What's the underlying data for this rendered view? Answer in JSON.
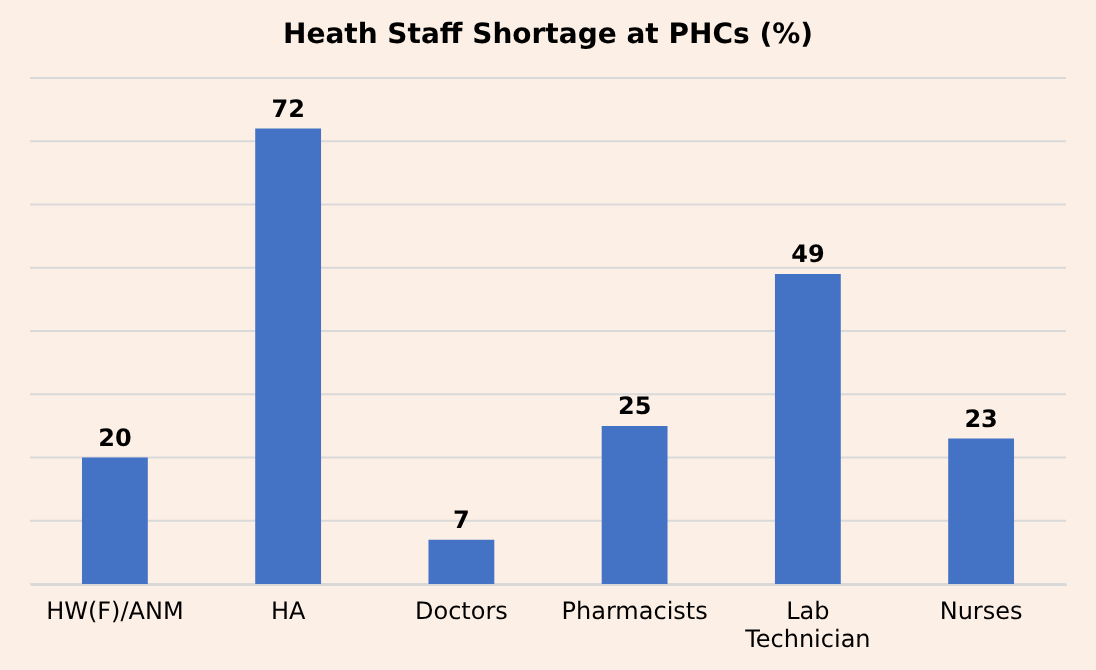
{
  "chart_data": {
    "type": "bar",
    "title": "Heath Staff Shortage at PHCs (%)",
    "categories": [
      "HW(F)/ANM",
      "HA",
      "Doctors",
      "Pharmacists",
      "Lab Technician",
      "Nurses"
    ],
    "values": [
      20,
      72,
      7,
      25,
      49,
      23
    ],
    "color": "#4472c4",
    "ylim": [
      0,
      80
    ],
    "yticks": [
      {
        "value": 0,
        "label": null
      },
      {
        "value": 10,
        "label": null
      },
      {
        "value": 20,
        "label": null
      },
      {
        "value": 30,
        "label": null
      },
      {
        "value": 40,
        "label": null
      },
      {
        "value": 50,
        "label": null
      },
      {
        "value": 60,
        "label": null
      },
      {
        "value": 70,
        "label": null
      },
      {
        "value": 80,
        "label": null
      }
    ],
    "grid": "y",
    "tick_labels": "x",
    "data_labels": true
  }
}
